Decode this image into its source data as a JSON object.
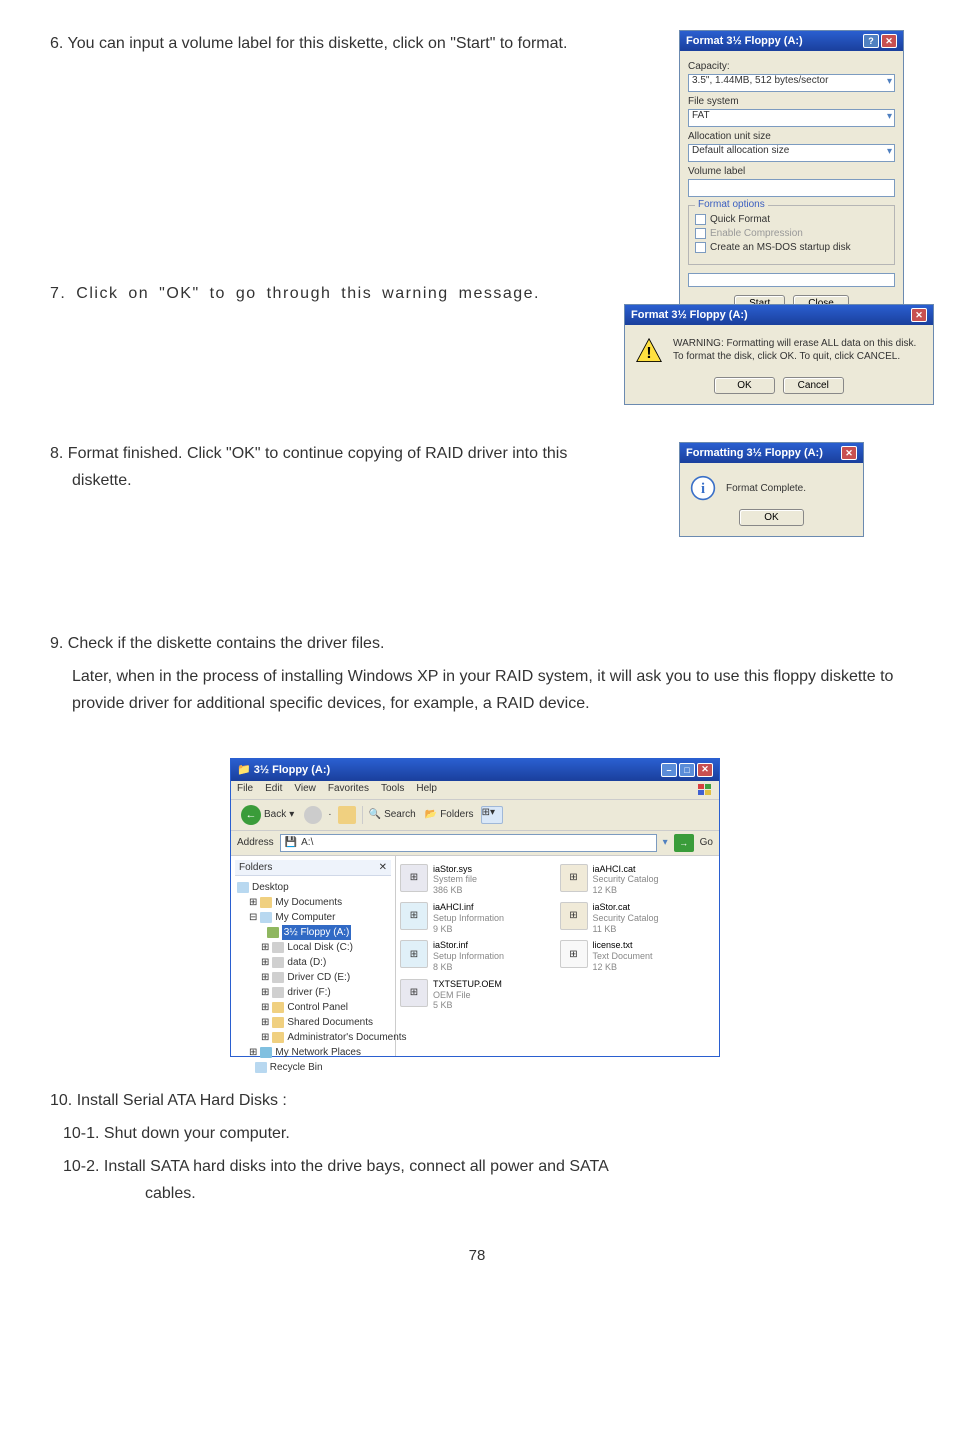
{
  "steps": {
    "s6": "6. You can input a volume label for this diskette, click on \"Start\" to format.",
    "s7": "7. Click on \"OK\" to go through this warning message.",
    "s8": "8. Format finished. Click \"OK\" to continue copying of RAID driver into this diskette.",
    "s9a": "9. Check if the diskette contains the driver files.",
    "s9b": "Later, when in the process of installing Windows XP in your RAID system, it will ask you to use this floppy diskette to provide driver for additional specific devices, for example, a RAID device.",
    "s10": "10. Install Serial ATA Hard Disks :",
    "s10_1": "10-1. Shut down your computer.",
    "s10_2": "10-2. Install SATA hard disks into the drive bays, connect all power and SATA",
    "s10_2b": "cables."
  },
  "tab": "5",
  "page": "78",
  "format": {
    "title": "Format 3½ Floppy (A:)",
    "capacity_label": "Capacity:",
    "capacity": "3.5\", 1.44MB, 512 bytes/sector",
    "fs_label": "File system",
    "fs": "FAT",
    "alloc_label": "Allocation unit size",
    "alloc": "Default allocation size",
    "vol_label": "Volume label",
    "options_legend": "Format options",
    "opt_quick": "Quick Format",
    "opt_compress": "Enable Compression",
    "opt_msdos": "Create an MS-DOS startup disk",
    "btn_start": "Start",
    "btn_close": "Close"
  },
  "warn": {
    "title": "Format 3½ Floppy (A:)",
    "line1": "WARNING: Formatting will erase ALL data on this disk.",
    "line2": "To format the disk, click OK. To quit, click CANCEL.",
    "btn_ok": "OK",
    "btn_cancel": "Cancel"
  },
  "complete": {
    "title": "Formatting 3½ Floppy (A:)",
    "text": "Format Complete.",
    "btn_ok": "OK"
  },
  "explorer": {
    "title": "3½ Floppy (A:)",
    "menu": {
      "file": "File",
      "edit": "Edit",
      "view": "View",
      "fav": "Favorites",
      "tools": "Tools",
      "help": "Help"
    },
    "toolbar": {
      "back": "Back",
      "search": "Search",
      "folders": "Folders"
    },
    "address_label": "Address",
    "address": "A:\\",
    "go": "Go",
    "folders_hdr": "Folders",
    "tree": {
      "desktop": "Desktop",
      "mydocs": "My Documents",
      "mycomp": "My Computer",
      "floppy": "3½ Floppy (A:)",
      "localc": "Local Disk (C:)",
      "datad": "data (D:)",
      "drivere": "Driver CD (E:)",
      "driverf": "driver (F:)",
      "control": "Control Panel",
      "shared": "Shared Documents",
      "admin": "Administrator's Documents",
      "netplaces": "My Network Places",
      "recycle": "Recycle Bin"
    },
    "files": [
      {
        "name": "iaStor.sys",
        "type": "System file",
        "size": "386 KB",
        "icon": "sys"
      },
      {
        "name": "iaAHCI.cat",
        "type": "Security Catalog",
        "size": "12 KB",
        "icon": "cat"
      },
      {
        "name": "iaAHCI.inf",
        "type": "Setup Information",
        "size": "9 KB",
        "icon": "inf"
      },
      {
        "name": "iaStor.cat",
        "type": "Security Catalog",
        "size": "11 KB",
        "icon": "cat"
      },
      {
        "name": "iaStor.inf",
        "type": "Setup Information",
        "size": "8 KB",
        "icon": "inf"
      },
      {
        "name": "license.txt",
        "type": "Text Document",
        "size": "12 KB",
        "icon": "txt"
      },
      {
        "name": "TXTSETUP.OEM",
        "type": "OEM File",
        "size": "5 KB",
        "icon": "sys"
      }
    ]
  }
}
